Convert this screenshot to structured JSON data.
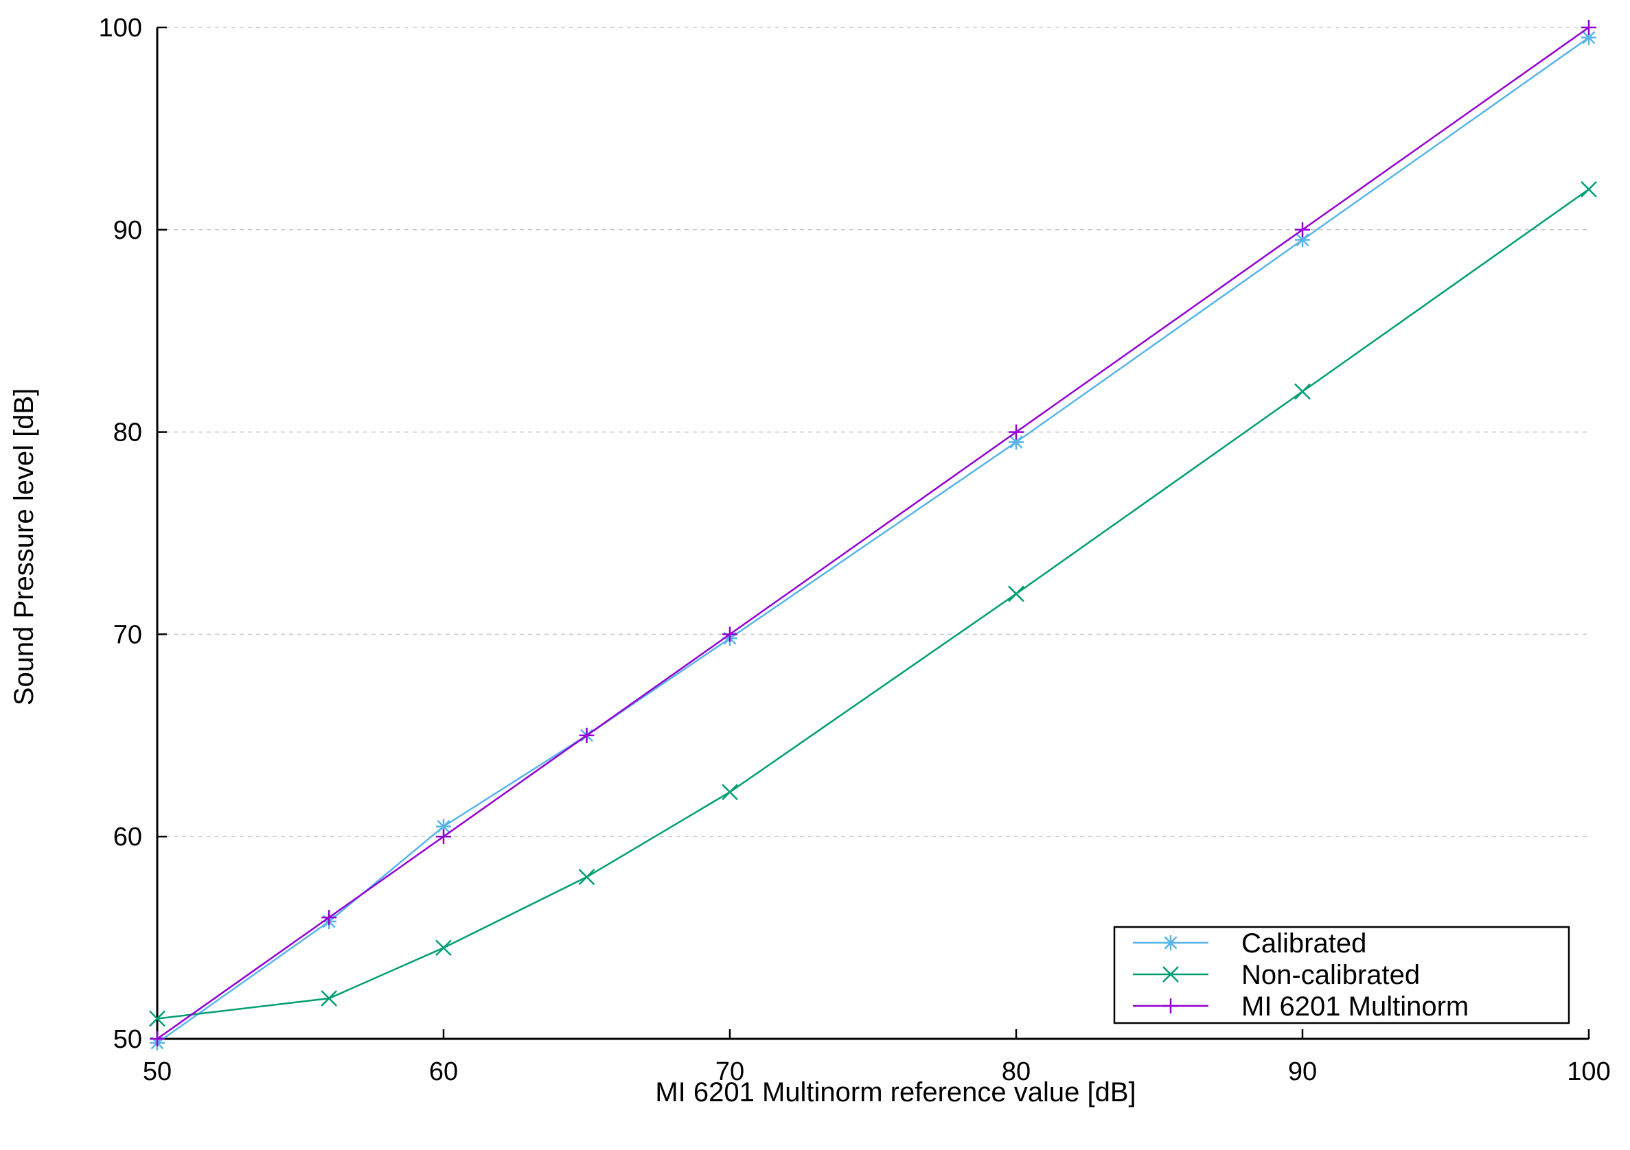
{
  "chart_data": {
    "type": "line",
    "title": "",
    "xlabel": "MI 6201 Multinorm reference value [dB]",
    "ylabel": "Sound Pressure level [dB]",
    "xlim": [
      50,
      100
    ],
    "ylim": [
      50,
      100
    ],
    "xticks": [
      50,
      60,
      70,
      80,
      90,
      100
    ],
    "yticks": [
      50,
      60,
      70,
      80,
      90,
      100
    ],
    "grid": {
      "y": true,
      "x": false,
      "style": "dashed"
    },
    "legend": {
      "position": "bottom-right",
      "boxed": true
    },
    "series": [
      {
        "name": "Calibrated",
        "color": "#56b4e9",
        "marker": "asterisk",
        "x": [
          50,
          56,
          60,
          65,
          70,
          80,
          90,
          100
        ],
        "y": [
          49.8,
          55.8,
          60.5,
          65.0,
          69.8,
          79.5,
          89.5,
          99.5
        ]
      },
      {
        "name": "Non-calibrated",
        "color": "#009e73",
        "marker": "x",
        "x": [
          50,
          56,
          60,
          65,
          70,
          80,
          90,
          100
        ],
        "y": [
          51.0,
          52.0,
          54.5,
          58.0,
          62.2,
          72.0,
          82.0,
          92.0
        ]
      },
      {
        "name": "MI 6201 Multinorm",
        "color": "#9400d3",
        "marker": "plus",
        "x": [
          50,
          56,
          60,
          65,
          70,
          80,
          90,
          100
        ],
        "y": [
          50,
          56,
          60,
          65,
          70,
          80,
          90,
          100
        ]
      }
    ]
  }
}
